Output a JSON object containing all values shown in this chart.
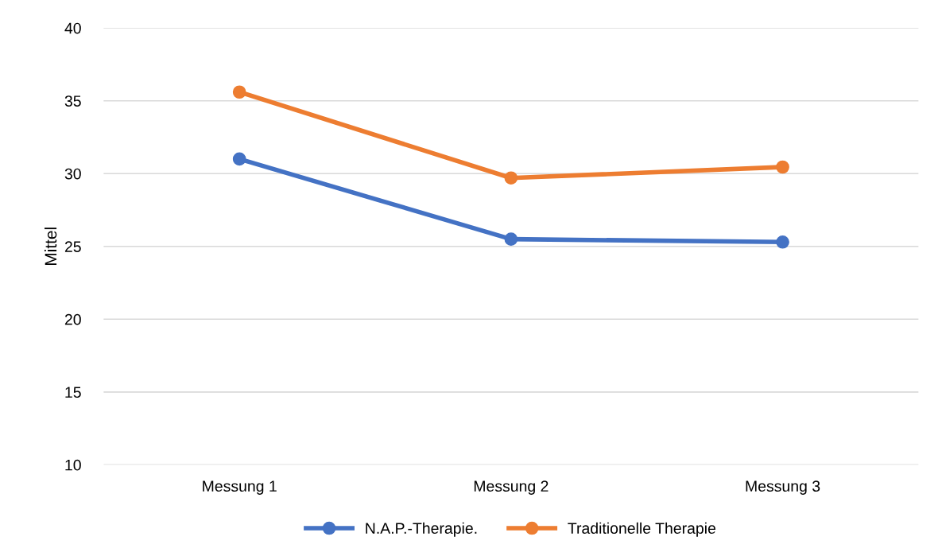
{
  "chart_data": {
    "type": "line",
    "ylabel": "Mittel",
    "categories": [
      "Messung 1",
      "Messung 2",
      "Messung 3"
    ],
    "series": [
      {
        "name": "N.A.P.-Therapie.",
        "color": "#4472c4",
        "values": [
          31.0,
          25.5,
          25.3
        ]
      },
      {
        "name": "Traditionelle Therapie",
        "color": "#ed7d31",
        "values": [
          35.6,
          29.7,
          30.45
        ]
      }
    ],
    "ylim": [
      10,
      40
    ],
    "yticks": [
      10,
      15,
      20,
      25,
      30,
      35,
      40
    ],
    "grid": "y",
    "legend": "bottom",
    "marker": "circle",
    "line_style": "solid"
  }
}
